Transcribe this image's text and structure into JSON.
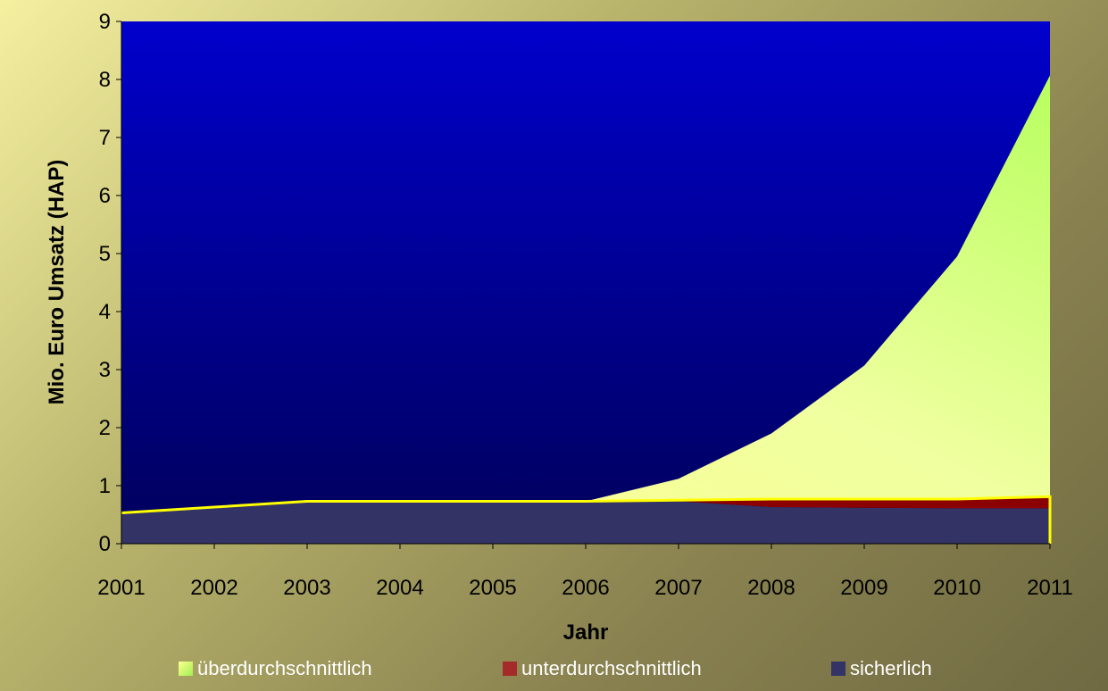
{
  "chart_data": {
    "type": "area",
    "title": "",
    "xlabel": "Jahr",
    "ylabel": "Mio. Euro Umsatz (HAP)",
    "ylim": [
      0,
      9
    ],
    "y_ticks": [
      "0",
      "1",
      "2",
      "3",
      "4",
      "5",
      "6",
      "7",
      "8",
      "9"
    ],
    "categories": [
      "2001",
      "2002",
      "2003",
      "2004",
      "2005",
      "2006",
      "2007",
      "2008",
      "2009",
      "2010",
      "2011"
    ],
    "stacked": true,
    "series": [
      {
        "name": "sicherlich",
        "values": [
          0.53,
          0.63,
          0.73,
          0.73,
          0.73,
          0.73,
          0.73,
          0.63,
          0.62,
          0.61,
          0.61
        ]
      },
      {
        "name": "unterdurchschnittlich",
        "values": [
          0,
          0,
          0,
          0,
          0,
          0,
          0.02,
          0.14,
          0.15,
          0.16,
          0.2
        ]
      },
      {
        "name": "überdurchschnittlich",
        "values": [
          0,
          0,
          0,
          0,
          0,
          0,
          0.37,
          1.13,
          2.3,
          4.18,
          7.26
        ]
      }
    ],
    "colors": {
      "plot_background": "#0000b0",
      "sicherlich": "#333366",
      "unterdurchschnittlich": "#8b0000",
      "überdurchschnittlich": "#f8ff90",
      "outline": "#ffff00"
    },
    "grid": false,
    "legend_position": "bottom"
  }
}
